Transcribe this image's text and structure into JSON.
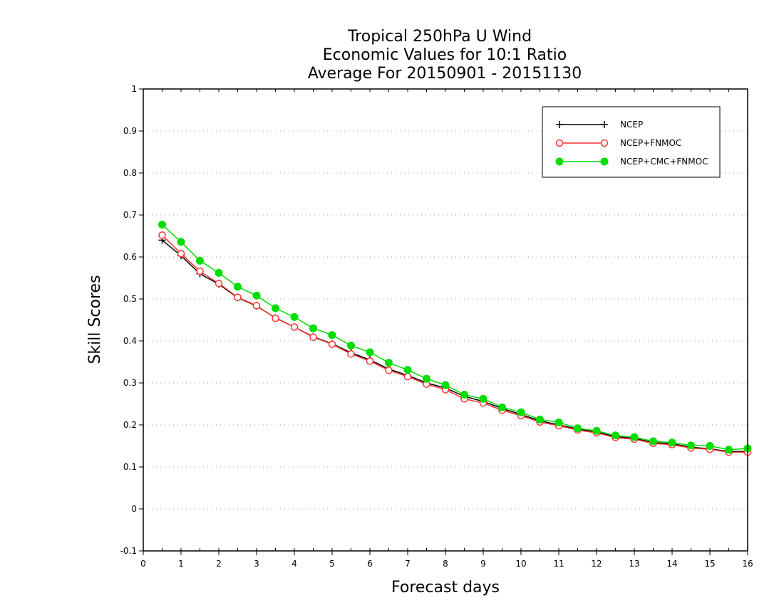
{
  "chart_data": {
    "type": "line",
    "title": [
      "Tropical 250hPa U Wind",
      "Economic Values for 10:1 Ratio",
      "Average For 20150901 - 20151130"
    ],
    "xlabel": "Forecast days",
    "ylabel": "Skill Scores",
    "xlim": [
      0,
      16
    ],
    "ylim": [
      -0.1,
      1
    ],
    "xticks": [
      "0",
      "1",
      "2",
      "3",
      "4",
      "5",
      "6",
      "7",
      "8",
      "9",
      "10",
      "11",
      "12",
      "13",
      "14",
      "15",
      "16"
    ],
    "yticks": [
      "-0.1",
      "0",
      "0.1",
      "0.2",
      "0.3",
      "0.4",
      "0.5",
      "0.6",
      "0.7",
      "0.8",
      "0.9",
      "1"
    ],
    "grid": "horizontal dotted",
    "legend_position": "top-right",
    "x": [
      0.5,
      1,
      1.5,
      2,
      2.5,
      3,
      3.5,
      4,
      4.5,
      5,
      5.5,
      6,
      6.5,
      7,
      7.5,
      8,
      8.5,
      9,
      9.5,
      10,
      10.5,
      11,
      11.5,
      12,
      12.5,
      13,
      13.5,
      14,
      14.5,
      15,
      15.5,
      16
    ],
    "series": [
      {
        "name": "NCEP",
        "color": "#000000",
        "marker": "plus",
        "values": [
          0.64,
          0.603,
          0.56,
          0.535,
          0.503,
          0.483,
          0.455,
          0.433,
          0.41,
          0.393,
          0.372,
          0.355,
          0.333,
          0.318,
          0.3,
          0.288,
          0.268,
          0.256,
          0.239,
          0.225,
          0.21,
          0.2,
          0.19,
          0.183,
          0.172,
          0.168,
          0.158,
          0.155,
          0.147,
          0.143,
          0.137,
          0.137
        ]
      },
      {
        "name": "NCEP+FNMOC",
        "color": "#ff3333",
        "marker": "open-circle",
        "values": [
          0.652,
          0.608,
          0.566,
          0.537,
          0.504,
          0.484,
          0.454,
          0.433,
          0.409,
          0.392,
          0.369,
          0.352,
          0.33,
          0.315,
          0.297,
          0.284,
          0.262,
          0.252,
          0.235,
          0.222,
          0.207,
          0.198,
          0.188,
          0.181,
          0.17,
          0.166,
          0.156,
          0.153,
          0.145,
          0.142,
          0.135,
          0.135
        ]
      },
      {
        "name": "NCEP+CMC+FNMOC",
        "color": "#00dd00",
        "marker": "filled-circle",
        "values": [
          0.677,
          0.636,
          0.591,
          0.562,
          0.529,
          0.508,
          0.478,
          0.457,
          0.43,
          0.414,
          0.389,
          0.373,
          0.348,
          0.331,
          0.31,
          0.295,
          0.272,
          0.262,
          0.242,
          0.23,
          0.213,
          0.206,
          0.192,
          0.186,
          0.175,
          0.171,
          0.161,
          0.158,
          0.151,
          0.15,
          0.141,
          0.144
        ]
      }
    ]
  }
}
